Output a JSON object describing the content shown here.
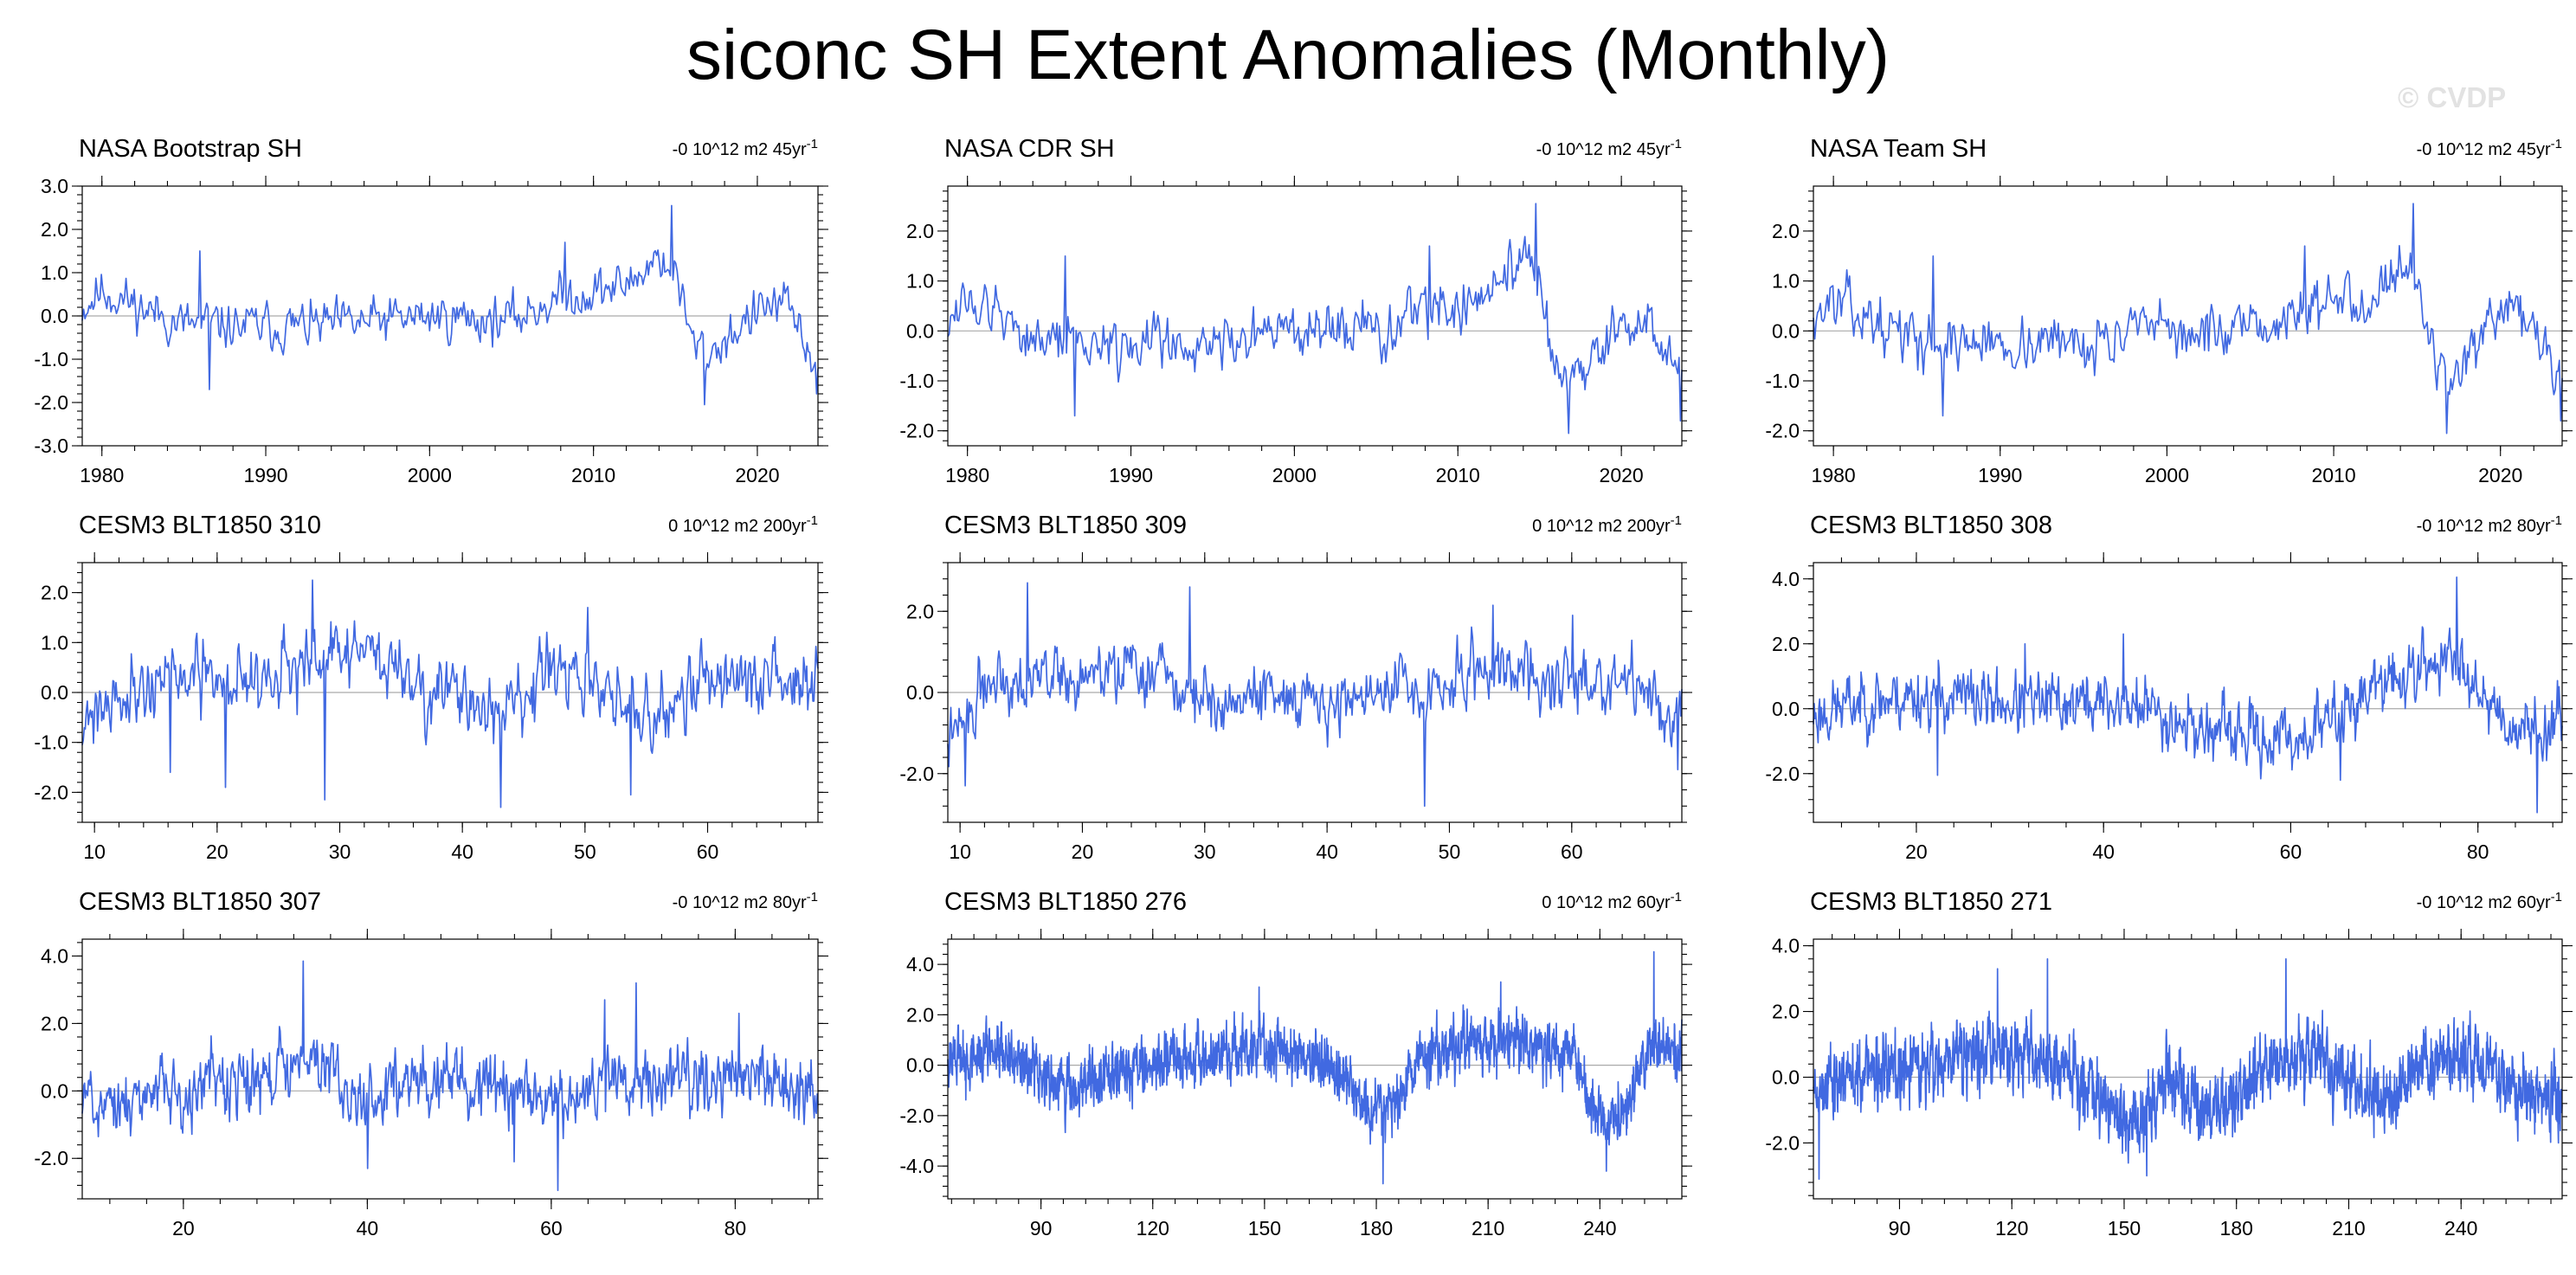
{
  "figure_title": "siconc SH Extent Anomalies (Monthly)",
  "watermark": "© CVDP",
  "series_color": "#4169e1",
  "zero_line_color": "#aaaaaa",
  "chart_data": [
    {
      "type": "line",
      "title": "NASA Bootstrap SH",
      "trend": "-0 10^12 m2 45yr",
      "trend_exp": "-1",
      "xlim": [
        1978.8,
        2023.7
      ],
      "ylim": [
        -3.0,
        3.0
      ],
      "xticks": [
        1980,
        1990,
        2000,
        2010,
        2020
      ],
      "xtick_labels": [
        "1980",
        "1990",
        "2000",
        "2010",
        "2020"
      ],
      "yticks": [
        -3,
        -2,
        -1,
        0,
        1,
        2,
        3
      ],
      "ytick_labels": [
        "-3.0",
        "-2.0",
        "-1.0",
        "0.0",
        "1.0",
        "2.0",
        "3.0"
      ],
      "series_profile": [
        [
          1978.8,
          0.2
        ],
        [
          1980,
          0.6
        ],
        [
          1983,
          0.1
        ],
        [
          1985,
          -0.2
        ],
        [
          1990,
          -0.25
        ],
        [
          1995,
          -0.2
        ],
        [
          2000,
          0.0
        ],
        [
          2005,
          -0.1
        ],
        [
          2007,
          0.3
        ],
        [
          2009,
          0.5
        ],
        [
          2012,
          0.7
        ],
        [
          2014,
          1.4
        ],
        [
          2015,
          1.0
        ],
        [
          2016,
          -0.6
        ],
        [
          2017,
          -0.9
        ],
        [
          2019,
          -0.2
        ],
        [
          2021,
          0.3
        ],
        [
          2022,
          0.1
        ],
        [
          2023,
          -0.7
        ],
        [
          2023.7,
          -1.2
        ]
      ],
      "noise": 0.42,
      "seed": 11,
      "spikes": [
        [
          1986.6,
          -1.7
        ],
        [
          2014.8,
          2.55
        ],
        [
          2016.8,
          -2.05
        ],
        [
          2023.6,
          -1.8
        ],
        [
          2008.3,
          1.7
        ],
        [
          1986.0,
          1.5
        ]
      ]
    },
    {
      "type": "line",
      "title": "NASA CDR SH",
      "trend": "-0 10^12 m2 45yr",
      "trend_exp": "-1",
      "xlim": [
        1978.8,
        2023.7
      ],
      "ylim": [
        -2.3,
        2.9
      ],
      "xticks": [
        1980,
        1990,
        2000,
        2010,
        2020
      ],
      "xtick_labels": [
        "1980",
        "1990",
        "2000",
        "2010",
        "2020"
      ],
      "yticks": [
        -2,
        -1,
        0,
        1,
        2
      ],
      "ytick_labels": [
        "-2.0",
        "-1.0",
        "0.0",
        "1.0",
        "2.0"
      ],
      "series_profile": [
        [
          1978.8,
          0.3
        ],
        [
          1980,
          0.6
        ],
        [
          1983,
          0.1
        ],
        [
          1985,
          -0.2
        ],
        [
          1990,
          -0.25
        ],
        [
          1995,
          -0.2
        ],
        [
          2000,
          0.0
        ],
        [
          2005,
          -0.1
        ],
        [
          2007,
          0.3
        ],
        [
          2009,
          0.5
        ],
        [
          2012,
          0.7
        ],
        [
          2014,
          1.4
        ],
        [
          2015,
          1.0
        ],
        [
          2016,
          -0.6
        ],
        [
          2017,
          -0.9
        ],
        [
          2019,
          -0.2
        ],
        [
          2021,
          0.3
        ],
        [
          2022,
          0.1
        ],
        [
          2023,
          -0.7
        ],
        [
          2023.7,
          -1.2
        ]
      ],
      "noise": 0.42,
      "seed": 12,
      "spikes": [
        [
          1986.6,
          -1.7
        ],
        [
          2014.8,
          2.55
        ],
        [
          2016.8,
          -2.05
        ],
        [
          2023.6,
          -1.8
        ],
        [
          2008.3,
          1.7
        ],
        [
          1986.0,
          1.5
        ]
      ]
    },
    {
      "type": "line",
      "title": "NASA Team SH",
      "trend": "-0 10^12 m2 45yr",
      "trend_exp": "-1",
      "xlim": [
        1978.8,
        2023.7
      ],
      "ylim": [
        -2.3,
        2.9
      ],
      "xticks": [
        1980,
        1990,
        2000,
        2010,
        2020
      ],
      "xtick_labels": [
        "1980",
        "1990",
        "2000",
        "2010",
        "2020"
      ],
      "yticks": [
        -2,
        -1,
        0,
        1,
        2
      ],
      "ytick_labels": [
        "-2.0",
        "-1.0",
        "0.0",
        "1.0",
        "2.0"
      ],
      "series_profile": [
        [
          1978.8,
          0.3
        ],
        [
          1980,
          0.6
        ],
        [
          1983,
          0.1
        ],
        [
          1985,
          -0.2
        ],
        [
          1990,
          -0.25
        ],
        [
          1995,
          -0.2
        ],
        [
          2000,
          0.0
        ],
        [
          2005,
          -0.1
        ],
        [
          2007,
          0.3
        ],
        [
          2009,
          0.5
        ],
        [
          2012,
          0.7
        ],
        [
          2014,
          1.4
        ],
        [
          2015,
          1.0
        ],
        [
          2016,
          -0.6
        ],
        [
          2017,
          -0.9
        ],
        [
          2019,
          -0.2
        ],
        [
          2021,
          0.3
        ],
        [
          2022,
          0.1
        ],
        [
          2023,
          -0.7
        ],
        [
          2023.7,
          -1.2
        ]
      ],
      "noise": 0.42,
      "seed": 13,
      "spikes": [
        [
          1986.6,
          -1.7
        ],
        [
          2014.8,
          2.55
        ],
        [
          2016.8,
          -2.05
        ],
        [
          2023.6,
          -1.8
        ],
        [
          2008.3,
          1.7
        ],
        [
          1986.0,
          1.5
        ]
      ]
    },
    {
      "type": "line",
      "title": "CESM3 BLT1850 310",
      "trend": "0 10^12 m2 200yr",
      "trend_exp": "-1",
      "xlim": [
        9,
        69
      ],
      "ylim": [
        -2.6,
        2.6
      ],
      "xticks": [
        10,
        20,
        30,
        40,
        50,
        60
      ],
      "xtick_labels": [
        "10",
        "20",
        "30",
        "40",
        "50",
        "60"
      ],
      "yticks": [
        -2,
        -1,
        0,
        1,
        2
      ],
      "ytick_labels": [
        "-2.0",
        "-1.0",
        "0.0",
        "1.0",
        "2.0"
      ],
      "series_profile": [
        [
          9,
          -0.5
        ],
        [
          12,
          0.0
        ],
        [
          16,
          0.3
        ],
        [
          20,
          0.2
        ],
        [
          24,
          0.4
        ],
        [
          28,
          0.5
        ],
        [
          31,
          0.9
        ],
        [
          34,
          0.6
        ],
        [
          37,
          0.1
        ],
        [
          40,
          -0.2
        ],
        [
          43,
          -0.4
        ],
        [
          46,
          0.2
        ],
        [
          49,
          0.3
        ],
        [
          52,
          -0.1
        ],
        [
          55,
          -0.6
        ],
        [
          58,
          0.1
        ],
        [
          62,
          0.4
        ],
        [
          65,
          0.1
        ],
        [
          69,
          0.3
        ]
      ],
      "noise": 0.55,
      "seed": 21,
      "spikes": [
        [
          27.8,
          2.25
        ],
        [
          28.8,
          -2.15
        ],
        [
          43.1,
          -2.3
        ],
        [
          53.7,
          -2.05
        ],
        [
          20.7,
          -1.9
        ],
        [
          16.2,
          -1.6
        ],
        [
          50.2,
          1.7
        ]
      ]
    },
    {
      "type": "line",
      "title": "CESM3 BLT1850 309",
      "trend": "0 10^12 m2 200yr",
      "trend_exp": "-1",
      "xlim": [
        9,
        69
      ],
      "ylim": [
        -3.2,
        3.2
      ],
      "xticks": [
        10,
        20,
        30,
        40,
        50,
        60
      ],
      "xtick_labels": [
        "10",
        "20",
        "30",
        "40",
        "50",
        "60"
      ],
      "yticks": [
        -2,
        0,
        2
      ],
      "ytick_labels": [
        "-2.0",
        "0.0",
        "2.0"
      ],
      "series_profile": [
        [
          9,
          -1.2
        ],
        [
          10.5,
          -0.8
        ],
        [
          12,
          0.3
        ],
        [
          16,
          0.5
        ],
        [
          20,
          0.3
        ],
        [
          24,
          0.6
        ],
        [
          28,
          0.1
        ],
        [
          32,
          -0.2
        ],
        [
          36,
          0.0
        ],
        [
          40,
          -0.3
        ],
        [
          44,
          0.1
        ],
        [
          48,
          -0.1
        ],
        [
          52,
          0.6
        ],
        [
          55,
          0.7
        ],
        [
          58,
          0.2
        ],
        [
          62,
          0.4
        ],
        [
          65,
          0.2
        ],
        [
          68,
          -0.5
        ],
        [
          69,
          -0.4
        ]
      ],
      "noise": 0.6,
      "seed": 22,
      "spikes": [
        [
          15.5,
          2.7
        ],
        [
          28.8,
          2.6
        ],
        [
          48.0,
          -2.8
        ],
        [
          10.4,
          -2.3
        ],
        [
          53.6,
          2.15
        ],
        [
          60.1,
          1.9
        ],
        [
          68.7,
          -1.9
        ]
      ]
    },
    {
      "type": "line",
      "title": "CESM3 BLT1850 308",
      "trend": "-0 10^12 m2 80yr",
      "trend_exp": "-1",
      "xlim": [
        9,
        89
      ],
      "ylim": [
        -3.5,
        4.5
      ],
      "xticks": [
        20,
        40,
        60,
        80
      ],
      "xtick_labels": [
        "20",
        "40",
        "60",
        "80"
      ],
      "yticks": [
        -2,
        0,
        2,
        4
      ],
      "ytick_labels": [
        "-2.0",
        "0.0",
        "2.0",
        "4.0"
      ],
      "series_profile": [
        [
          9,
          -0.2
        ],
        [
          14,
          0.2
        ],
        [
          20,
          0.4
        ],
        [
          26,
          0.3
        ],
        [
          32,
          0.1
        ],
        [
          38,
          0.2
        ],
        [
          44,
          0.1
        ],
        [
          50,
          -0.6
        ],
        [
          56,
          -0.9
        ],
        [
          60,
          -1.0
        ],
        [
          64,
          -0.4
        ],
        [
          68,
          0.5
        ],
        [
          72,
          1.0
        ],
        [
          76,
          1.5
        ],
        [
          79,
          1.3
        ],
        [
          81,
          0.3
        ],
        [
          84,
          -0.6
        ],
        [
          89,
          -0.5
        ]
      ],
      "noise": 0.75,
      "seed": 23,
      "spikes": [
        [
          77.7,
          4.05
        ],
        [
          86.3,
          -3.2
        ],
        [
          42.1,
          2.3
        ],
        [
          31.6,
          2.0
        ],
        [
          22.3,
          -2.05
        ],
        [
          65.3,
          -2.2
        ]
      ]
    },
    {
      "type": "line",
      "title": "CESM3 BLT1850 307",
      "trend": "-0 10^12 m2 80yr",
      "trend_exp": "-1",
      "xlim": [
        9,
        89
      ],
      "ylim": [
        -3.2,
        4.5
      ],
      "xticks": [
        20,
        40,
        60,
        80
      ],
      "xtick_labels": [
        "20",
        "40",
        "60",
        "80"
      ],
      "yticks": [
        -2,
        0,
        2,
        4
      ],
      "ytick_labels": [
        "-2.0",
        "0.0",
        "2.0",
        "4.0"
      ],
      "series_profile": [
        [
          9,
          -0.2
        ],
        [
          14,
          -0.4
        ],
        [
          18,
          0.0
        ],
        [
          24,
          0.2
        ],
        [
          28,
          0.3
        ],
        [
          33,
          0.9
        ],
        [
          36,
          0.4
        ],
        [
          40,
          -0.3
        ],
        [
          44,
          0.0
        ],
        [
          48,
          0.4
        ],
        [
          52,
          0.2
        ],
        [
          56,
          0.1
        ],
        [
          60,
          -0.5
        ],
        [
          64,
          0.0
        ],
        [
          68,
          0.5
        ],
        [
          72,
          0.2
        ],
        [
          76,
          0.1
        ],
        [
          80,
          0.6
        ],
        [
          84,
          0.3
        ],
        [
          89,
          -0.3
        ]
      ],
      "noise": 0.75,
      "seed": 24,
      "spikes": [
        [
          33.0,
          3.85
        ],
        [
          60.7,
          -2.95
        ],
        [
          69.2,
          3.2
        ],
        [
          40.0,
          -2.3
        ],
        [
          56.0,
          -2.1
        ],
        [
          65.8,
          2.7
        ],
        [
          80.4,
          2.3
        ]
      ]
    },
    {
      "type": "line",
      "title": "CESM3 BLT1850 276",
      "trend": "0 10^12 m2 60yr",
      "trend_exp": "-1",
      "xlim": [
        65,
        262
      ],
      "ylim": [
        -5.3,
        5.0
      ],
      "xticks": [
        90,
        120,
        150,
        180,
        210,
        240
      ],
      "xtick_labels": [
        "90",
        "120",
        "150",
        "180",
        "210",
        "240"
      ],
      "yticks": [
        -4,
        -2,
        0,
        2,
        4
      ],
      "ytick_labels": [
        "-4.0",
        "-2.0",
        "0.0",
        "2.0",
        "4.0"
      ],
      "series_profile": [
        [
          65,
          0.0
        ],
        [
          75,
          0.5
        ],
        [
          85,
          0.2
        ],
        [
          95,
          -0.8
        ],
        [
          105,
          -0.5
        ],
        [
          115,
          -0.2
        ],
        [
          125,
          0.2
        ],
        [
          135,
          0.3
        ],
        [
          145,
          0.8
        ],
        [
          155,
          0.6
        ],
        [
          165,
          0.2
        ],
        [
          172,
          -0.8
        ],
        [
          180,
          -2.0
        ],
        [
          186,
          -1.2
        ],
        [
          192,
          0.2
        ],
        [
          200,
          0.8
        ],
        [
          210,
          1.0
        ],
        [
          220,
          0.9
        ],
        [
          228,
          0.4
        ],
        [
          233,
          0.5
        ],
        [
          237,
          -1.5
        ],
        [
          243,
          -2.4
        ],
        [
          248,
          -1.6
        ],
        [
          252,
          0.3
        ],
        [
          256,
          0.8
        ],
        [
          262,
          0.7
        ]
      ],
      "noise": 0.9,
      "seed": 25,
      "spikes": [
        [
          181.8,
          -4.7
        ],
        [
          254.5,
          4.5
        ],
        [
          213.4,
          3.3
        ],
        [
          241.7,
          -4.2
        ],
        [
          148.5,
          3.1
        ]
      ]
    },
    {
      "type": "line",
      "title": "CESM3 BLT1850 271",
      "trend": "-0 10^12 m2 60yr",
      "trend_exp": "-1",
      "xlim": [
        67,
        267
      ],
      "ylim": [
        -3.7,
        4.2
      ],
      "xticks": [
        90,
        120,
        150,
        180,
        210,
        240
      ],
      "xtick_labels": [
        "90",
        "120",
        "150",
        "180",
        "210",
        "240"
      ],
      "yticks": [
        -2,
        0,
        2,
        4
      ],
      "ytick_labels": [
        "-2.0",
        "0.0",
        "2.0",
        "4.0"
      ],
      "series_profile": [
        [
          67,
          -0.3
        ],
        [
          75,
          0.0
        ],
        [
          85,
          0.2
        ],
        [
          95,
          0.3
        ],
        [
          105,
          0.6
        ],
        [
          115,
          0.9
        ],
        [
          125,
          0.7
        ],
        [
          135,
          0.3
        ],
        [
          142,
          -0.6
        ],
        [
          150,
          -1.2
        ],
        [
          156,
          -1.0
        ],
        [
          162,
          -0.1
        ],
        [
          168,
          -0.7
        ],
        [
          175,
          -1.1
        ],
        [
          182,
          -0.4
        ],
        [
          190,
          0.6
        ],
        [
          198,
          0.8
        ],
        [
          206,
          0.3
        ],
        [
          214,
          -0.4
        ],
        [
          222,
          -0.7
        ],
        [
          230,
          0.4
        ],
        [
          240,
          0.8
        ],
        [
          248,
          0.2
        ],
        [
          255,
          -0.5
        ],
        [
          262,
          -0.6
        ],
        [
          267,
          -0.9
        ]
      ],
      "noise": 0.85,
      "seed": 26,
      "spikes": [
        [
          129.5,
          3.6
        ],
        [
          193.2,
          3.6
        ],
        [
          68.5,
          -3.1
        ],
        [
          156.0,
          -3.0
        ],
        [
          116.2,
          3.3
        ],
        [
          266.0,
          -2.0
        ]
      ]
    }
  ]
}
